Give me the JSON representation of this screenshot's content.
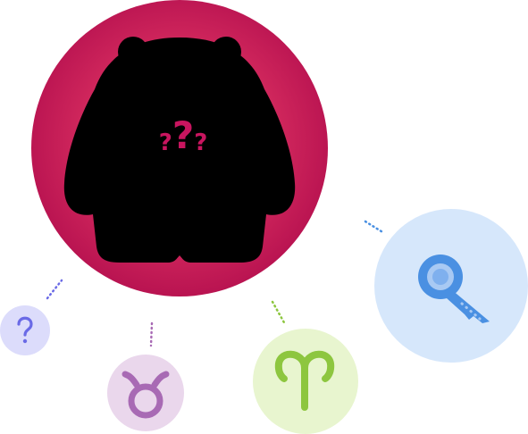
{
  "mystery": {
    "glyph_left": "?",
    "glyph_center": "?",
    "glyph_right": "?"
  },
  "nodes": {
    "hint": {
      "icon": "question-mark-icon"
    },
    "taurus": {
      "icon": "taurus-zodiac-icon"
    },
    "aries": {
      "icon": "aries-zodiac-icon"
    },
    "key": {
      "icon": "key-icon"
    }
  },
  "colors": {
    "mystery_circle": "#c2185b",
    "hint_circle": "#dcdcfb",
    "hint_icon": "#6a6ae6",
    "taurus_circle": "#ead7ec",
    "taurus_icon": "#a86ab4",
    "aries_circle": "#e8f5cf",
    "aries_icon": "#8dc63f",
    "key_circle": "#d6e7fb",
    "key_icon": "#4a90e2"
  }
}
